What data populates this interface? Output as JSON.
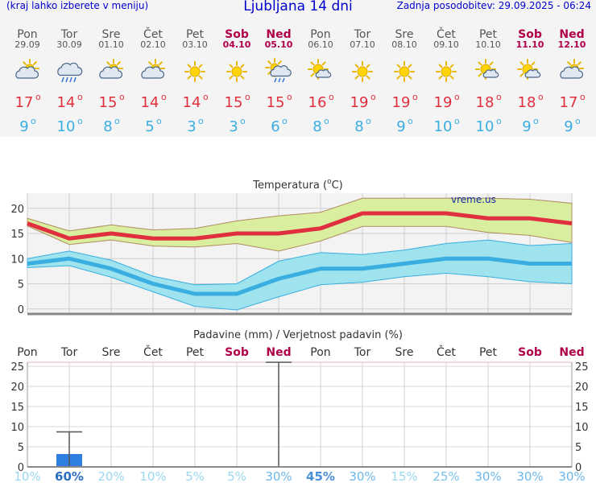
{
  "header": {
    "menu_hint": "(kraj lahko izberete v meniju)",
    "title": "Ljubljana 14 dni",
    "updated": "Zadnja posodobitev: 29.09.2025 - 06:24"
  },
  "colors": {
    "weekday": "#555555",
    "weekend": "#b0004a",
    "max_temp": "#e03040",
    "min_temp": "#3aaee0",
    "precip_bar": "#2f7fe0"
  },
  "chart_data": [
    {
      "type": "table",
      "title": "Ljubljana 14 dni",
      "days": [
        {
          "name": "Pon",
          "date": "29.09",
          "icon": "partly-cloudy-icon",
          "max": "17",
          "min": "9",
          "weekend": false
        },
        {
          "name": "Tor",
          "date": "30.09",
          "icon": "rain-cloud-icon",
          "max": "14",
          "min": "10",
          "weekend": false
        },
        {
          "name": "Sre",
          "date": "01.10",
          "icon": "partly-cloudy-icon",
          "max": "15",
          "min": "8",
          "weekend": false
        },
        {
          "name": "Čet",
          "date": "02.10",
          "icon": "partly-cloudy-icon",
          "max": "14",
          "min": "5",
          "weekend": false
        },
        {
          "name": "Pet",
          "date": "03.10",
          "icon": "sun-icon",
          "max": "14",
          "min": "3",
          "weekend": false
        },
        {
          "name": "Sob",
          "date": "04.10",
          "icon": "sun-icon",
          "max": "15",
          "min": "3",
          "weekend": true
        },
        {
          "name": "Ned",
          "date": "05.10",
          "icon": "sun-rain-icon",
          "max": "15",
          "min": "6",
          "weekend": true
        },
        {
          "name": "Pon",
          "date": "06.10",
          "icon": "mostly-sunny-icon",
          "max": "16",
          "min": "8",
          "weekend": false
        },
        {
          "name": "Tor",
          "date": "07.10",
          "icon": "sun-icon",
          "max": "19",
          "min": "8",
          "weekend": false
        },
        {
          "name": "Sre",
          "date": "08.10",
          "icon": "sun-icon",
          "max": "19",
          "min": "9",
          "weekend": false
        },
        {
          "name": "Čet",
          "date": "09.10",
          "icon": "sun-icon",
          "max": "19",
          "min": "10",
          "weekend": false
        },
        {
          "name": "Pet",
          "date": "10.10",
          "icon": "mostly-sunny-icon",
          "max": "18",
          "min": "10",
          "weekend": false
        },
        {
          "name": "Sob",
          "date": "11.10",
          "icon": "mostly-sunny-icon",
          "max": "18",
          "min": "9",
          "weekend": true
        },
        {
          "name": "Ned",
          "date": "12.10",
          "icon": "partly-cloudy-icon",
          "max": "17",
          "min": "9",
          "weekend": true
        }
      ],
      "degree_symbol": "o"
    },
    {
      "type": "line",
      "title": "Temperatura (",
      "title_unit": "C)",
      "title_degree": "o",
      "watermark": "vreme.us",
      "ylim": [
        -1,
        23
      ],
      "yticks": [
        0,
        5,
        10,
        15,
        20
      ],
      "series": [
        {
          "name": "max",
          "values": [
            17,
            14,
            15,
            14,
            14,
            15,
            15,
            16,
            19,
            19,
            19,
            18,
            18,
            17
          ],
          "band_high": [
            18,
            15.5,
            16.7,
            15.7,
            16,
            17.5,
            18.5,
            19.2,
            22,
            22,
            22,
            22,
            21.8,
            21
          ],
          "band_low": [
            16.5,
            12.8,
            13.7,
            12.5,
            12.3,
            13,
            11.5,
            13.5,
            16.4,
            16.4,
            16.4,
            15.2,
            14.6,
            13.2
          ]
        },
        {
          "name": "min",
          "values": [
            9,
            10,
            8,
            5,
            3,
            3,
            6,
            8,
            8,
            9,
            10,
            10,
            9,
            9
          ],
          "band_high": [
            10,
            11.5,
            9.7,
            6.5,
            4.8,
            5,
            9.5,
            11.2,
            10.8,
            11.7,
            13,
            13.7,
            12.6,
            13
          ],
          "band_low": [
            8.2,
            8.6,
            6.3,
            3.4,
            0.5,
            -0.2,
            2.4,
            4.8,
            5.3,
            6.4,
            7.1,
            6.4,
            5.4,
            5
          ]
        }
      ]
    },
    {
      "type": "bar",
      "title": "Padavine (mm) / Verjetnost padavin (%)",
      "ylim": [
        0,
        26
      ],
      "yticks": [
        0,
        5,
        10,
        15,
        20,
        25
      ],
      "categories": [
        "Pon",
        "Tor",
        "Sre",
        "Čet",
        "Pet",
        "Sob",
        "Ned",
        "Pon",
        "Tor",
        "Sre",
        "Čet",
        "Pet",
        "Sob",
        "Ned"
      ],
      "weekend": [
        false,
        false,
        false,
        false,
        false,
        true,
        true,
        false,
        false,
        false,
        false,
        false,
        true,
        true
      ],
      "values": [
        0,
        3.2,
        0,
        0,
        0,
        0,
        0,
        0,
        0,
        0,
        0,
        0,
        0,
        0
      ],
      "error_high": [
        null,
        8.7,
        null,
        null,
        null,
        null,
        26,
        null,
        null,
        null,
        null,
        null,
        null,
        null
      ],
      "probability": [
        "10%",
        "60%",
        "20%",
        "10%",
        "5%",
        "5%",
        "30%",
        "45%",
        "30%",
        "15%",
        "25%",
        "30%",
        "30%",
        "30%"
      ],
      "probability_color": [
        "#9ad8f0",
        "#2a6fc0",
        "#9ad8f0",
        "#9ad8f0",
        "#9ad8f0",
        "#9ad8f0",
        "#6ab8ea",
        "#4a90d8",
        "#6ab8ea",
        "#9ad8f0",
        "#7cc2ec",
        "#6ab8ea",
        "#6ab8ea",
        "#6ab8ea"
      ]
    }
  ]
}
